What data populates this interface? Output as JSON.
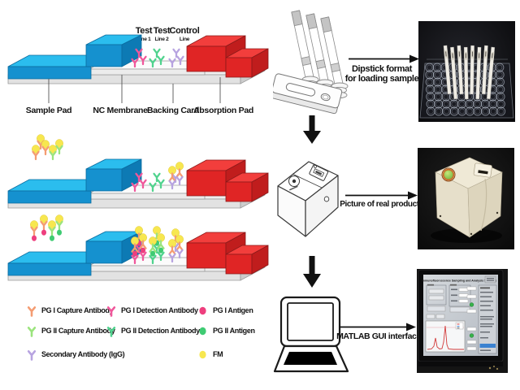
{
  "strip": {
    "line_labels": [
      {
        "top": "Test",
        "bottom": "Line 1"
      },
      {
        "top": "Test",
        "bottom": "Line 2"
      },
      {
        "top": "Control",
        "bottom": "Line"
      }
    ],
    "part_labels": [
      "Sample Pad",
      "NC Membrane",
      "Backing Card",
      "Absorption Pad"
    ]
  },
  "legend": {
    "col1": [
      {
        "label": "PG I Capture Antibody"
      },
      {
        "label": "PG II Capture Antibody"
      },
      {
        "label": "Secondary Antibody (IgG)"
      }
    ],
    "col2": [
      {
        "label": "PG I Detection Antibody"
      },
      {
        "label": "PG II Detection Antibody"
      }
    ],
    "col3": [
      {
        "label": "PG I Antigen"
      },
      {
        "label": "PG II Antigen"
      },
      {
        "label": "FM"
      }
    ]
  },
  "flow": {
    "step1_line1": "Dipstick format",
    "step1_line2": "for loading sample",
    "step2": "Picture of real product",
    "step3": "MATLAB GUI interface"
  },
  "gui_screen": {
    "title": "Immunofluorescence Sampling and Analysis Software"
  },
  "colors": {
    "sample_pad_top": "#2BBDEE",
    "sample_pad_front": "#1591CF",
    "sample_pad_side": "#0D7AB4",
    "absorption_pad_top": "#F23E3C",
    "absorption_pad_front": "#E02525",
    "absorption_pad_side": "#C01D1D",
    "membrane": "#FBFBFB",
    "backing": "#EFEFEF",
    "pg1_capture": "#F49C72",
    "pg1_detection": "#F0579B",
    "pg1_antigen": "#EE3F7E",
    "pg2_capture": "#9BE47D",
    "pg2_detection": "#50D38E",
    "pg2_antigen": "#3FCB73",
    "secondary_antibody": "#B7A3E0",
    "fm": "#F7E74F",
    "arrow_black": "#111111",
    "gui_accent_blue": "#3B82D0",
    "indicator_green": "#37B24A",
    "device_cream": "#EFE9D6",
    "button_green": "#6FB03C"
  }
}
